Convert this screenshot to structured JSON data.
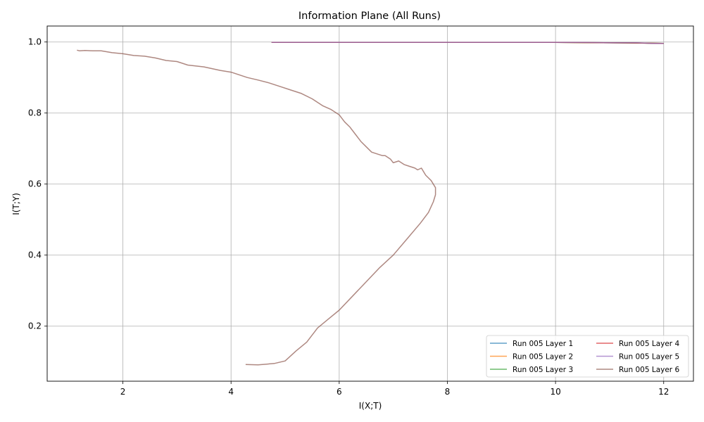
{
  "chart_data": {
    "type": "line",
    "title": "Information Plane (All Runs)",
    "xlabel": "I(X;T)",
    "ylabel": "I(T;Y)",
    "xlim": [
      0.6,
      12.55
    ],
    "ylim": [
      0.045,
      1.045
    ],
    "xticks": [
      2,
      4,
      6,
      8,
      10,
      12
    ],
    "yticks": [
      0.2,
      0.4,
      0.6,
      0.8,
      1.0
    ],
    "xtick_labels": [
      "2",
      "4",
      "6",
      "8",
      "10",
      "12"
    ],
    "ytick_labels": [
      "0.2",
      "0.4",
      "0.6",
      "0.8",
      "1.0"
    ],
    "grid": true,
    "legend": {
      "placement": "lower-right",
      "columns": 2
    },
    "series": [
      {
        "name": "Run 005 Layer 1",
        "color": "#1f77b4",
        "x": [
          4.75,
          6,
          8,
          10,
          11.6,
          12.0
        ],
        "y": [
          0.999,
          0.999,
          0.999,
          0.999,
          0.997,
          0.996
        ]
      },
      {
        "name": "Run 005 Layer 2",
        "color": "#ff7f0e",
        "x": [
          4.75,
          6,
          8,
          10,
          11.6,
          12.0
        ],
        "y": [
          0.999,
          0.999,
          0.999,
          0.999,
          0.997,
          0.996
        ]
      },
      {
        "name": "Run 005 Layer 3",
        "color": "#2ca02c",
        "x": [
          4.75,
          6,
          8,
          10,
          11.6,
          12.0
        ],
        "y": [
          0.999,
          0.999,
          0.999,
          0.999,
          0.997,
          0.996
        ]
      },
      {
        "name": "Run 005 Layer 4",
        "color": "#d62728",
        "x": [
          4.75,
          6,
          8,
          10,
          11.6,
          12.0
        ],
        "y": [
          0.999,
          0.999,
          0.999,
          0.999,
          0.997,
          0.996
        ]
      },
      {
        "name": "Run 005 Layer 5",
        "color": "#9467bd",
        "x": [
          4.75,
          5.5,
          6,
          7,
          8,
          9,
          10,
          10.5,
          11,
          11.5,
          11.8,
          12.0
        ],
        "y": [
          0.999,
          0.999,
          0.999,
          0.999,
          0.999,
          0.999,
          0.999,
          0.999,
          0.998,
          0.998,
          0.996,
          0.996
        ]
      },
      {
        "name": "Run 005 Layer 6",
        "color": "#8c564b",
        "x": [
          4.27,
          4.5,
          4.8,
          5.0,
          5.2,
          5.4,
          5.6,
          5.8,
          6.0,
          6.25,
          6.5,
          6.75,
          7.0,
          7.25,
          7.5,
          7.65,
          7.74,
          7.78,
          7.78,
          7.7,
          7.6,
          7.52,
          7.45,
          7.4,
          7.3,
          7.2,
          7.1,
          7.0,
          6.95,
          6.85,
          6.8,
          6.7,
          6.6,
          6.5,
          6.4,
          6.3,
          6.2,
          6.1,
          6.0,
          5.85,
          5.7,
          5.5,
          5.3,
          5.1,
          4.9,
          4.7,
          4.5,
          4.3,
          4.0,
          3.8,
          3.5,
          3.2,
          3.0,
          2.8,
          2.6,
          2.4,
          2.2,
          2.0,
          1.8,
          1.6,
          1.45,
          1.3,
          1.2,
          1.15
        ],
        "y": [
          0.092,
          0.091,
          0.095,
          0.102,
          0.13,
          0.155,
          0.195,
          0.22,
          0.245,
          0.285,
          0.325,
          0.365,
          0.4,
          0.445,
          0.49,
          0.52,
          0.55,
          0.57,
          0.59,
          0.61,
          0.625,
          0.645,
          0.64,
          0.645,
          0.65,
          0.655,
          0.665,
          0.66,
          0.67,
          0.68,
          0.68,
          0.685,
          0.69,
          0.705,
          0.72,
          0.74,
          0.76,
          0.775,
          0.795,
          0.81,
          0.82,
          0.84,
          0.855,
          0.865,
          0.875,
          0.885,
          0.893,
          0.9,
          0.915,
          0.92,
          0.93,
          0.935,
          0.945,
          0.948,
          0.955,
          0.96,
          0.962,
          0.967,
          0.97,
          0.975,
          0.975,
          0.976,
          0.975,
          0.977
        ]
      }
    ]
  }
}
